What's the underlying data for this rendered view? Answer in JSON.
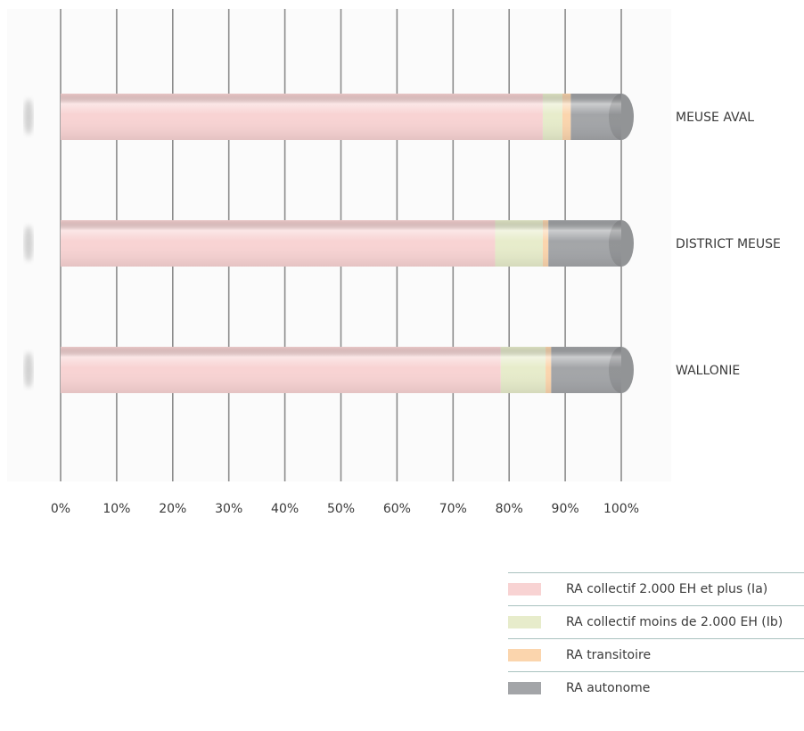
{
  "chart_data": {
    "type": "bar",
    "orientation": "horizontal",
    "stacked": true,
    "xlim": [
      0,
      100
    ],
    "x_ticks": [
      "0%",
      "10%",
      "20%",
      "30%",
      "40%",
      "50%",
      "60%",
      "70%",
      "80%",
      "90%",
      "100%"
    ],
    "categories": [
      "MEUSE AVAL",
      "DISTRICT MEUSE",
      "WALLONIE"
    ],
    "series": [
      {
        "name": "RA collectif 2.000 EH et plus (Ia)",
        "color": "#f8d3d3",
        "values": [
          86.0,
          77.5,
          78.5
        ]
      },
      {
        "name": "RA collectif moins de 2.000 EH (Ib)",
        "color": "#e7eccb",
        "values": [
          3.5,
          8.5,
          8.0
        ]
      },
      {
        "name": "RA transitoire",
        "color": "#fbd5ad",
        "values": [
          1.5,
          1.0,
          1.0
        ]
      },
      {
        "name": "RA autonome",
        "color": "#a3a5a8",
        "values": [
          9.0,
          13.0,
          12.5
        ]
      }
    ],
    "grid": true,
    "legend_position": "bottom-right"
  }
}
